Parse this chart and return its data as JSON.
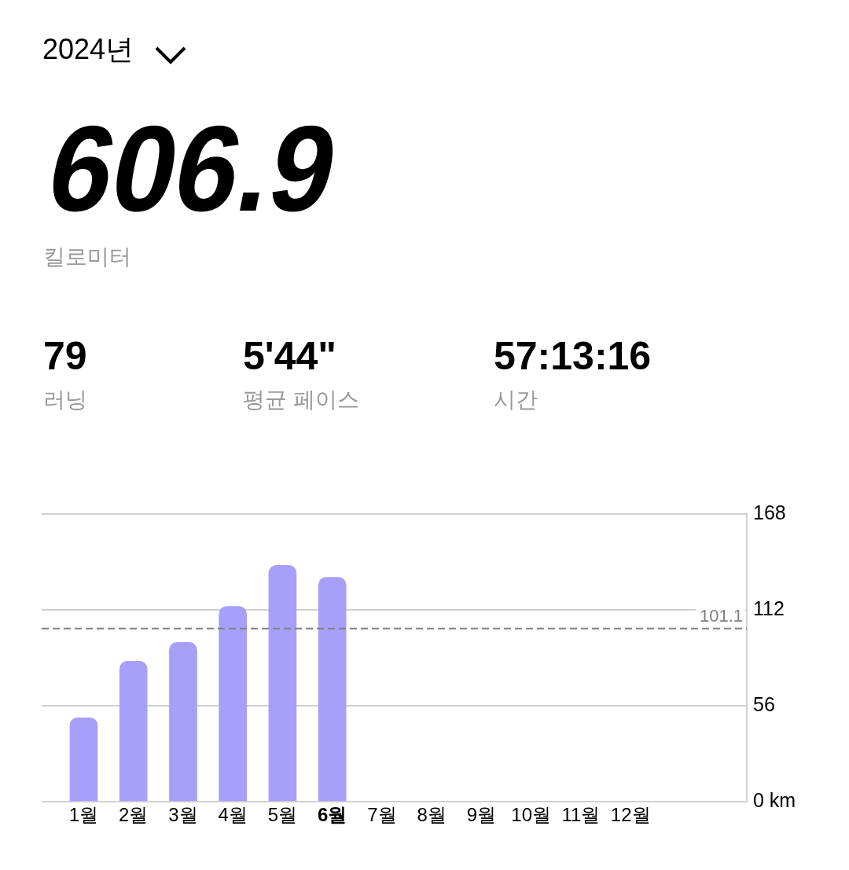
{
  "chart_data": {
    "type": "bar",
    "title": "2024년",
    "annotations": [
      "606.9",
      "킬로미터",
      "79",
      "러닝",
      "5'44\"",
      "평균 페이스",
      "57:13:16",
      "시간"
    ],
    "categories": [
      "1월",
      "2월",
      "3월",
      "4월",
      "5월",
      "6월",
      "7월",
      "8월",
      "9월",
      "10월",
      "11월",
      "12월"
    ],
    "values": [
      49,
      82,
      93,
      114,
      138,
      131,
      null,
      null,
      null,
      null,
      null,
      null
    ],
    "color": "#a79ff9",
    "ylim": [
      0,
      168
    ],
    "yticks": [
      {
        "value": 0,
        "label": "0 km"
      },
      56,
      112,
      168
    ],
    "grid": "y",
    "ref_lines": [
      {
        "axis": "y",
        "value": 101.1,
        "label": "101.1",
        "color": "#808080",
        "line_style": "dashed"
      }
    ]
  }
}
